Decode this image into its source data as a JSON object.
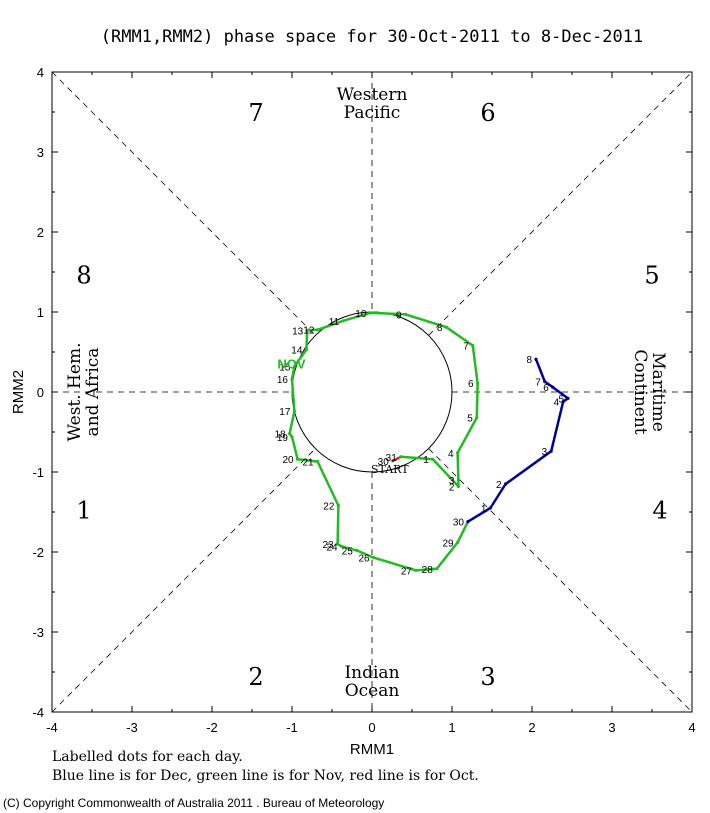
{
  "chart_data": {
    "type": "line",
    "title": "(RMM1,RMM2) phase space for 30-Oct-2011 to  8-Dec-2011",
    "xlabel": "RMM1",
    "ylabel": "RMM2",
    "xlim": [
      -4,
      4
    ],
    "ylim": [
      -4,
      4
    ],
    "xticks": [
      "-4",
      "-3",
      "-2",
      "-1",
      "0",
      "1",
      "2",
      "3",
      "4"
    ],
    "yticks": [
      "-4",
      "-3",
      "-2",
      "-1",
      "0",
      "1",
      "2",
      "3",
      "4"
    ],
    "phases": [
      {
        "label": "1",
        "x": -3.6,
        "y": -1.47
      },
      {
        "label": "2",
        "x": -1.45,
        "y": -3.55
      },
      {
        "label": "3",
        "x": 1.45,
        "y": -3.55
      },
      {
        "label": "4",
        "x": 3.6,
        "y": -1.47
      },
      {
        "label": "5",
        "x": 3.5,
        "y": 1.47
      },
      {
        "label": "6",
        "x": 1.45,
        "y": 3.5
      },
      {
        "label": "7",
        "x": -1.45,
        "y": 3.5
      },
      {
        "label": "8",
        "x": -3.6,
        "y": 1.47
      }
    ],
    "regions": [
      {
        "lines": [
          "Western",
          "Pacific"
        ],
        "position": "top"
      },
      {
        "lines": [
          "Indian",
          "Ocean"
        ],
        "position": "bottom"
      },
      {
        "lines": [
          "West. Hem.",
          "and Africa"
        ],
        "position": "left"
      },
      {
        "lines": [
          "Maritime",
          "Continent"
        ],
        "position": "right"
      }
    ],
    "start_label": "START",
    "month_label": {
      "text": "NOV",
      "x": -1.02,
      "y": 0.22
    },
    "series": [
      {
        "month": "Oct",
        "color": "#ff0000",
        "points": [
          {
            "day": "30",
            "x": 0.26,
            "y": -0.86
          },
          {
            "day": "31",
            "x": 0.36,
            "y": -0.81
          }
        ]
      },
      {
        "month": "Nov",
        "color": "#22bb22",
        "points": [
          {
            "day": "31",
            "x": 0.36,
            "y": -0.81
          },
          {
            "day": "1",
            "x": 0.76,
            "y": -0.84
          },
          {
            "day": "2",
            "x": 1.08,
            "y": -1.18
          },
          {
            "day": "3",
            "x": 1.08,
            "y": -1.1
          },
          {
            "day": "4",
            "x": 1.07,
            "y": -0.76
          },
          {
            "day": "5",
            "x": 1.31,
            "y": -0.32
          },
          {
            "day": "6",
            "x": 1.32,
            "y": 0.11
          },
          {
            "day": "7",
            "x": 1.26,
            "y": 0.58
          },
          {
            "day": "8",
            "x": 0.93,
            "y": 0.81
          },
          {
            "day": "9",
            "x": 0.42,
            "y": 0.97
          },
          {
            "day": "10",
            "x": -0.02,
            "y": 0.99
          },
          {
            "day": "11",
            "x": -0.36,
            "y": 0.89
          },
          {
            "day": "12",
            "x": -0.67,
            "y": 0.78
          },
          {
            "day": "13",
            "x": -0.81,
            "y": 0.77
          },
          {
            "day": "14",
            "x": -0.82,
            "y": 0.53
          },
          {
            "day": "15",
            "x": -0.97,
            "y": 0.32
          },
          {
            "day": "16",
            "x": -1.0,
            "y": 0.16
          },
          {
            "day": "17",
            "x": -0.97,
            "y": -0.24
          },
          {
            "day": "18",
            "x": -1.03,
            "y": -0.52
          },
          {
            "day": "19",
            "x": -1.0,
            "y": -0.56
          },
          {
            "day": "20",
            "x": -0.93,
            "y": -0.84
          },
          {
            "day": "21",
            "x": -0.68,
            "y": -0.87
          },
          {
            "day": "22",
            "x": -0.42,
            "y": -1.42
          },
          {
            "day": "23",
            "x": -0.43,
            "y": -1.9
          },
          {
            "day": "24",
            "x": -0.38,
            "y": -1.93
          },
          {
            "day": "25",
            "x": -0.19,
            "y": -1.98
          },
          {
            "day": "26",
            "x": 0.02,
            "y": -2.07
          },
          {
            "day": "27",
            "x": 0.55,
            "y": -2.23
          },
          {
            "day": "28",
            "x": 0.81,
            "y": -2.21
          },
          {
            "day": "29",
            "x": 1.07,
            "y": -1.88
          },
          {
            "day": "30",
            "x": 1.2,
            "y": -1.62
          }
        ]
      },
      {
        "month": "Dec",
        "color": "#000099",
        "points": [
          {
            "day": "30",
            "x": 1.2,
            "y": -1.62
          },
          {
            "day": "1",
            "x": 1.48,
            "y": -1.45
          },
          {
            "day": "2",
            "x": 1.67,
            "y": -1.15
          },
          {
            "day": "3",
            "x": 2.24,
            "y": -0.74
          },
          {
            "day": "4",
            "x": 2.39,
            "y": -0.12
          },
          {
            "day": "5",
            "x": 2.45,
            "y": -0.08
          },
          {
            "day": "6",
            "x": 2.26,
            "y": 0.06
          },
          {
            "day": "7",
            "x": 2.16,
            "y": 0.13
          },
          {
            "day": "8",
            "x": 2.05,
            "y": 0.41
          }
        ]
      }
    ]
  },
  "notes": {
    "line1": "Labelled dots for each day.",
    "line2": "Blue line is for Dec, green line is for Nov, red line is for Oct."
  },
  "copyright": "(C) Copyright Commonwealth of Australia 2011 . Bureau of Meteorology"
}
